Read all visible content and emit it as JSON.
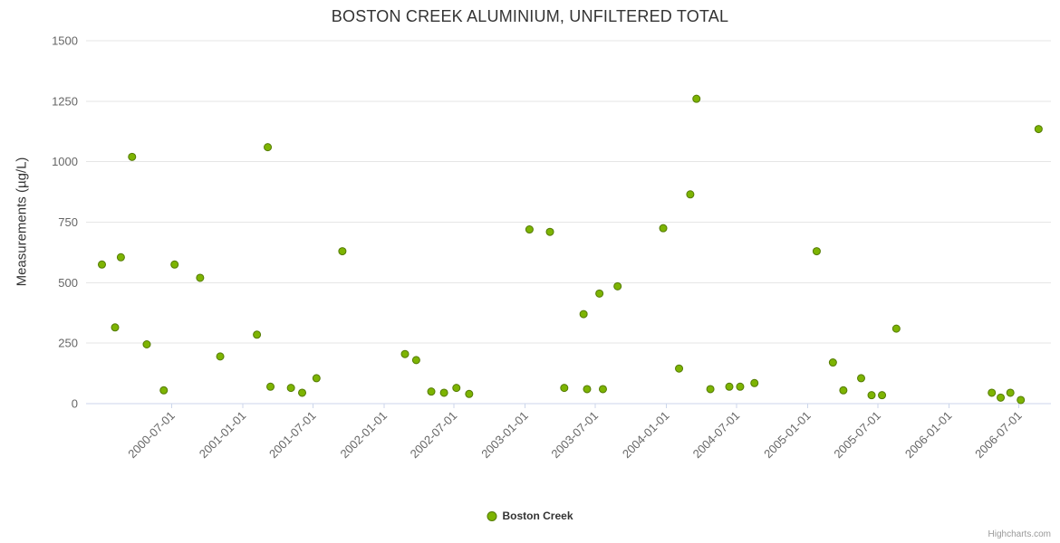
{
  "page": {
    "credits": "Highcharts.com"
  },
  "chart_data": {
    "type": "scatter",
    "title": "BOSTON CREEK ALUMINIUM, UNFILTERED TOTAL",
    "xlabel": "",
    "ylabel": "Measurements (µg/L)",
    "ylim": [
      0,
      1500
    ],
    "ytick_interval": 250,
    "yticks": [
      0,
      250,
      500,
      750,
      1000,
      1250,
      1500
    ],
    "xlim": [
      "1999-11-22",
      "2006-09-22"
    ],
    "xticks": [
      "2000-07-01",
      "2001-01-01",
      "2001-07-01",
      "2002-01-01",
      "2002-07-01",
      "2003-01-01",
      "2003-07-01",
      "2004-01-01",
      "2004-07-01",
      "2005-01-01",
      "2005-07-01",
      "2006-01-01",
      "2006-07-01"
    ],
    "grid": "horizontal",
    "legend_position": "bottom-center",
    "colors": {
      "grid": "#e6e6e6",
      "axis_line": "#ccd6eb",
      "tick_label": "#666666",
      "title": "#333333"
    },
    "series": [
      {
        "name": "Boston Creek",
        "color": "#7db402",
        "marker_line": "#537a02",
        "marker_radius": 4,
        "points": [
          [
            "2000-01-02",
            575
          ],
          [
            "2000-02-05",
            315
          ],
          [
            "2000-02-20",
            605
          ],
          [
            "2000-03-20",
            1020
          ],
          [
            "2000-04-27",
            245
          ],
          [
            "2000-06-10",
            55
          ],
          [
            "2000-07-08",
            575
          ],
          [
            "2000-09-12",
            520
          ],
          [
            "2000-11-03",
            195
          ],
          [
            "2001-02-06",
            285
          ],
          [
            "2001-03-06",
            1060
          ],
          [
            "2001-03-13",
            70
          ],
          [
            "2001-05-05",
            65
          ],
          [
            "2001-06-03",
            45
          ],
          [
            "2001-07-10",
            105
          ],
          [
            "2001-09-15",
            630
          ],
          [
            "2002-02-24",
            205
          ],
          [
            "2002-03-25",
            180
          ],
          [
            "2002-05-03",
            50
          ],
          [
            "2002-06-05",
            45
          ],
          [
            "2002-07-07",
            65
          ],
          [
            "2002-08-09",
            40
          ],
          [
            "2003-01-12",
            720
          ],
          [
            "2003-03-06",
            710
          ],
          [
            "2003-04-12",
            65
          ],
          [
            "2003-06-01",
            370
          ],
          [
            "2003-06-10",
            60
          ],
          [
            "2003-07-12",
            455
          ],
          [
            "2003-07-21",
            60
          ],
          [
            "2003-08-28",
            485
          ],
          [
            "2003-12-24",
            725
          ],
          [
            "2004-02-03",
            145
          ],
          [
            "2004-03-03",
            865
          ],
          [
            "2004-03-19",
            1260
          ],
          [
            "2004-04-24",
            60
          ],
          [
            "2004-06-12",
            70
          ],
          [
            "2004-07-10",
            70
          ],
          [
            "2004-08-16",
            85
          ],
          [
            "2005-01-24",
            630
          ],
          [
            "2005-03-07",
            170
          ],
          [
            "2005-04-03",
            55
          ],
          [
            "2005-05-19",
            105
          ],
          [
            "2005-06-15",
            35
          ],
          [
            "2005-07-12",
            35
          ],
          [
            "2005-08-18",
            310
          ],
          [
            "2006-04-22",
            45
          ],
          [
            "2006-05-15",
            25
          ],
          [
            "2006-06-09",
            45
          ],
          [
            "2006-07-06",
            15
          ],
          [
            "2006-08-21",
            1135
          ]
        ]
      }
    ]
  }
}
